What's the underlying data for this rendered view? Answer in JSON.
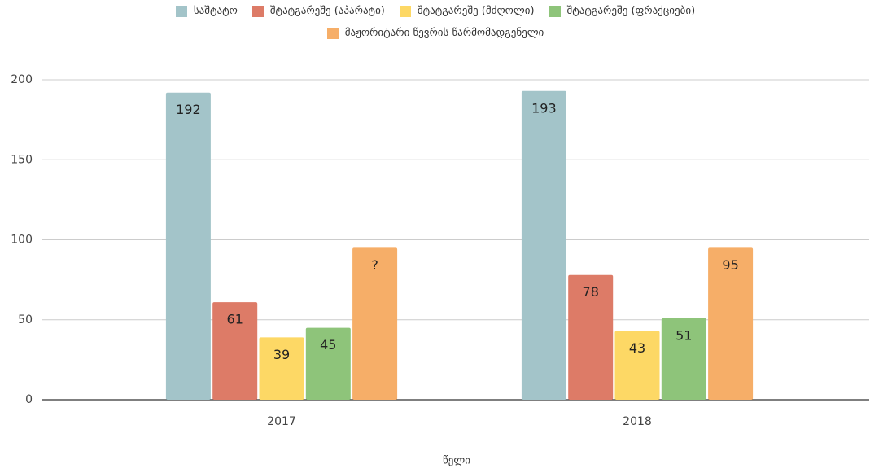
{
  "chart_data": {
    "type": "bar",
    "categories": [
      "2017",
      "2018"
    ],
    "xlabel": "წელი",
    "series": [
      {
        "name": "საშტატო",
        "color": "#a3c4c9",
        "values": [
          192,
          193
        ]
      },
      {
        "name": "შტატგარეშე (აპარატი)",
        "color": "#dd7b67",
        "values": [
          61,
          78
        ]
      },
      {
        "name": "შტატგარეშე (მძღოლი)",
        "color": "#fdd865",
        "values": [
          39,
          43
        ]
      },
      {
        "name": "შტატგარეშე (ფრაქციები)",
        "color": "#8ec47a",
        "values": [
          45,
          51
        ]
      },
      {
        "name": "მაჟორიტარი წევრის წარმომადგენელი",
        "color": "#f6ae68",
        "values": [
          95,
          95
        ],
        "value_labels": [
          "?",
          "95"
        ]
      }
    ],
    "ylim": [
      0,
      200
    ],
    "yticks": [
      0,
      50,
      100,
      150,
      200
    ],
    "grid": true,
    "legend": "top"
  }
}
